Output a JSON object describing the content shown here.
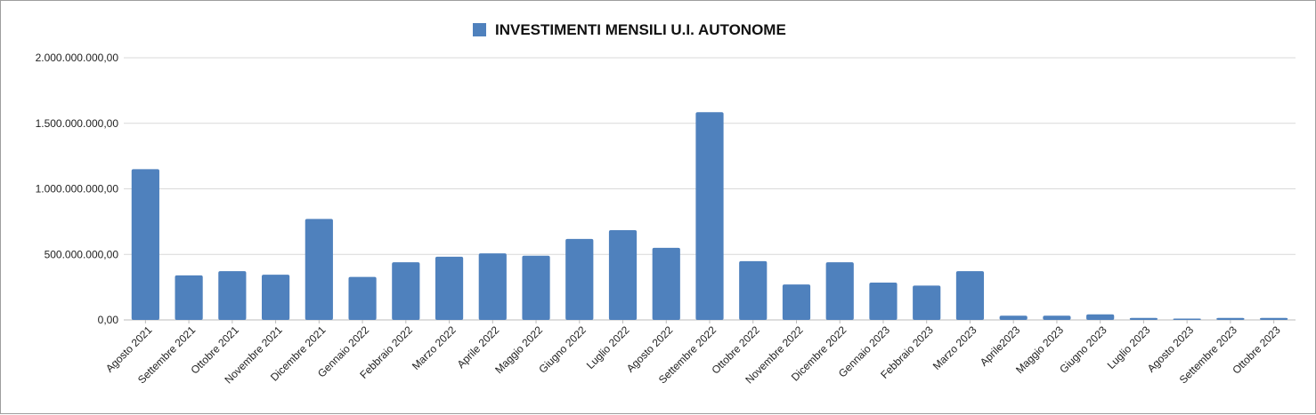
{
  "chart_data": {
    "type": "bar",
    "legend_placement": "top",
    "grid": true,
    "bar_color": "#4f81bd",
    "series": [
      {
        "name": "INVESTIMENTI MENSILI  U.I. AUTONOME",
        "values": [
          1150000000,
          340000000,
          372000000,
          345000000,
          770000000,
          328000000,
          440000000,
          482000000,
          508000000,
          490000000,
          618000000,
          685000000,
          550000000,
          1585000000,
          448000000,
          270000000,
          440000000,
          285000000,
          262000000,
          372000000,
          32000000,
          32000000,
          42000000,
          15000000,
          10000000,
          15000000,
          15000000
        ]
      }
    ],
    "categories": [
      "Agosto 2021",
      "Settembre 2021",
      "Ottobre 2021",
      "Novembre 2021",
      "Dicembre 2021",
      "Gennaio 2022",
      "Febbraio 2022",
      "Marzo 2022",
      "Aprile 2022",
      "Maggio 2022",
      "Giugno 2022",
      "Luglio 2022",
      "Agosto 2022",
      "Settembre 2022",
      "Ottobre 2022",
      "Novembre 2022",
      "Dicembre 2022",
      "Gennaio 2023",
      "Febbraio 2023",
      "Marzo 2023",
      "Aprile2023",
      "Maggio 2023",
      "Giugno 2023",
      "Luglio 2023",
      "Agosto 2023",
      "Settembre 2023",
      "Ottobre 2023"
    ],
    "ylim": [
      0,
      2000000000
    ],
    "yticks": [
      0,
      500000000,
      1000000000,
      1500000000,
      2000000000
    ],
    "ytick_labels": [
      "0,00",
      "500.000.000,00",
      "1.000.000.000,00",
      "1.500.000.000,00",
      "2.000.000.000,00"
    ]
  }
}
